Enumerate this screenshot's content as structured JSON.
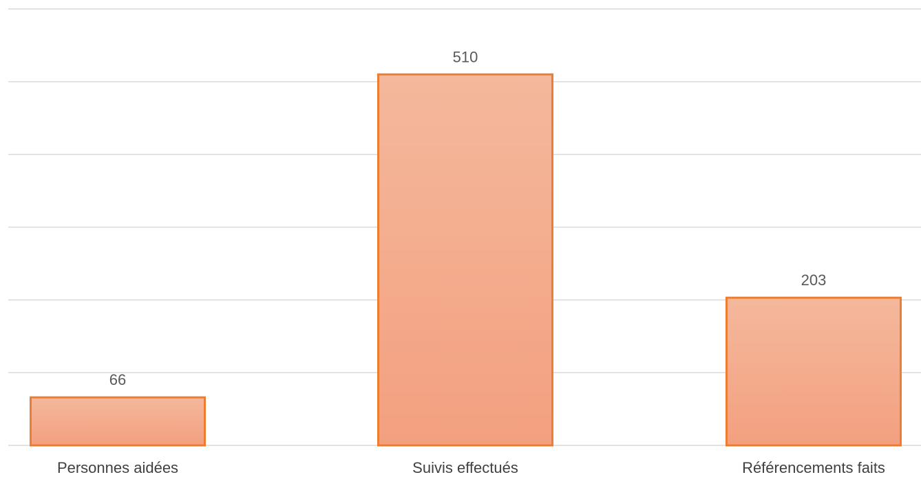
{
  "chart_data": {
    "type": "bar",
    "categories": [
      "Personnes aidées",
      "Suivis effectués",
      "Référencements faits"
    ],
    "values": [
      66,
      510,
      203
    ],
    "data_labels": [
      "66",
      "510",
      "203"
    ],
    "title": "",
    "xlabel": "",
    "ylabel": "",
    "ylim": [
      0,
      600
    ],
    "y_gridline_step": 100,
    "grid": true,
    "legend": "none",
    "colors": {
      "bar_fill_top": "#f4b89c",
      "bar_fill_bottom": "#f3a07f",
      "bar_stroke": "#ed7d31",
      "gridline": "#d9d9d9"
    }
  }
}
